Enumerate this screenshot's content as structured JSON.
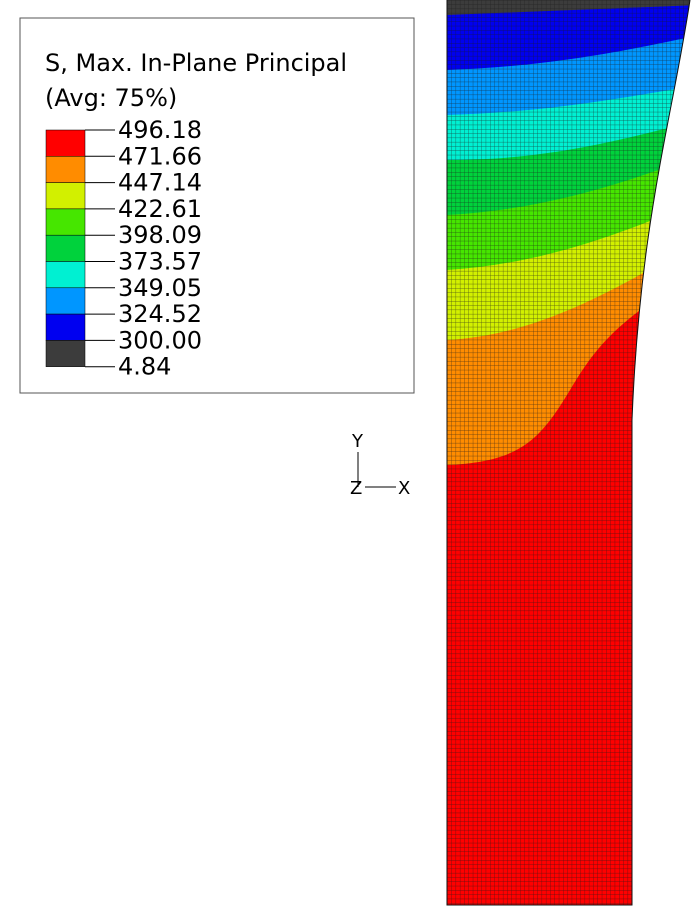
{
  "legend": {
    "title": "S, Max. In-Plane Principal",
    "subtitle": "(Avg: 75%)",
    "levels": [
      "496.18",
      "471.66",
      "447.14",
      "422.61",
      "398.09",
      "373.57",
      "349.05",
      "324.52",
      "300.00",
      "4.84"
    ],
    "colors": [
      "#ff0000",
      "#ff8c00",
      "#d2f000",
      "#46e600",
      "#00d23c",
      "#00f0d2",
      "#0096ff",
      "#0000f0",
      "#3c3c3c"
    ]
  },
  "triad": {
    "y": "Y",
    "z": "Z",
    "x": "X"
  }
}
